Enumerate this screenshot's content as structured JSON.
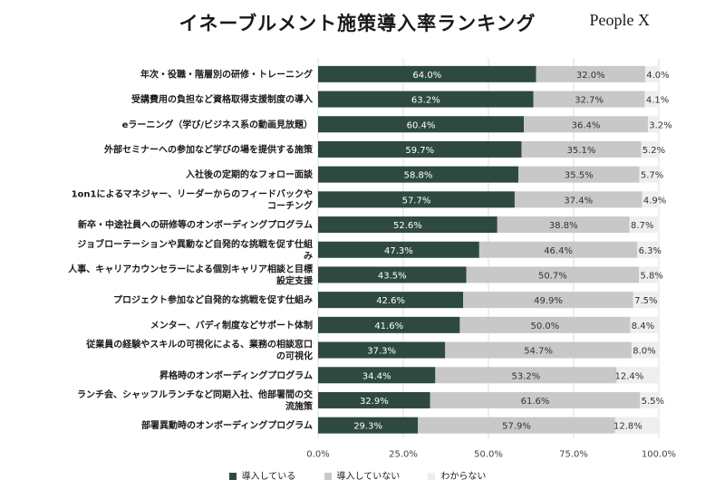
{
  "header": {
    "title": "イネーブルメント施策導入率ランキング",
    "brand": "People X"
  },
  "colors": {
    "adopted": "#2e4a3f",
    "not_adopted": "#c8c8c8",
    "unknown": "#eeeeee",
    "grid": "#dddddd"
  },
  "chart_data": {
    "type": "bar",
    "stacked": true,
    "orientation": "horizontal",
    "categories": [
      [
        "年次・役職・階層別の研修・トレーニング"
      ],
      [
        "受講費用の負担など資格取得支援制度の導入"
      ],
      [
        "eラーニング（学び/ビジネス系の動画見放題）"
      ],
      [
        "外部セミナーへの参加など学びの場を提供する施策"
      ],
      [
        "入社後の定期的なフォロー面談"
      ],
      [
        "1on1によるマネジャー、リーダーからのフィードバックや",
        "コーチング"
      ],
      [
        "新卒・中途社員への研修等のオンボーディングプログラム"
      ],
      [
        "ジョブローテーションや異動など自発的な挑戦を促す仕組",
        "み"
      ],
      [
        "人事、キャリアカウンセラーによる個別キャリア相談と目標",
        "設定支援"
      ],
      [
        "プロジェクト参加など自発的な挑戦を促す仕組み"
      ],
      [
        "メンター、バディ制度などサポート体制"
      ],
      [
        "従業員の経験やスキルの可視化による、業務の相談窓口",
        "の可視化"
      ],
      [
        "昇格時のオンボーディングプログラム"
      ],
      [
        "ランチ会、シャッフルランチなど同期入社、他部署間の交",
        "流施策"
      ],
      [
        "部署異動時のオンボーディングプログラム"
      ]
    ],
    "series": [
      {
        "name": "導入している",
        "values": [
          64.0,
          63.2,
          60.4,
          59.7,
          58.8,
          57.7,
          52.6,
          47.3,
          43.5,
          42.6,
          41.6,
          37.3,
          34.4,
          32.9,
          29.3
        ]
      },
      {
        "name": "導入していない",
        "values": [
          32.0,
          32.7,
          36.4,
          35.1,
          35.5,
          37.4,
          38.8,
          46.4,
          50.7,
          49.9,
          50.0,
          54.7,
          53.2,
          61.6,
          57.9
        ]
      },
      {
        "name": "わからない",
        "values": [
          4.0,
          4.1,
          3.2,
          5.2,
          5.7,
          4.9,
          8.7,
          6.3,
          5.8,
          7.5,
          8.4,
          8.0,
          12.4,
          5.5,
          12.8
        ]
      }
    ],
    "data_labels": [
      [
        "64.0%",
        "63.2%",
        "60.4%",
        "59.7%",
        "58.8%",
        "57.7%",
        "52.6%",
        "47.3%",
        "43.5%",
        "42.6%",
        "41.6%",
        "37.3%",
        "34.4%",
        "32.9%",
        "29.3%"
      ],
      [
        "32.0%",
        "32.7%",
        "36.4%",
        "35.1%",
        "35.5%",
        "37.4%",
        "38.8%",
        "46.4%",
        "50.7%",
        "49.9%",
        "50.0%",
        "54.7%",
        "53.2%",
        "61.6%",
        "57.9%"
      ],
      [
        "4.0%",
        "4.1%",
        "3.2%",
        "5.2%",
        "5.7%",
        "4.9%",
        "8.7%",
        "6.3%",
        "5.8%",
        "7.5%",
        "8.4%",
        "8.0%",
        "12.4%",
        "5.5%",
        "12.8%"
      ]
    ],
    "x_ticks": [
      0,
      25,
      50,
      75,
      100
    ],
    "x_tick_labels": [
      "0.0%",
      "25.0%",
      "50.0%",
      "75.0%",
      "100.0%"
    ],
    "xlim": [
      0,
      100
    ],
    "grid": true,
    "legend_position": "bottom"
  }
}
